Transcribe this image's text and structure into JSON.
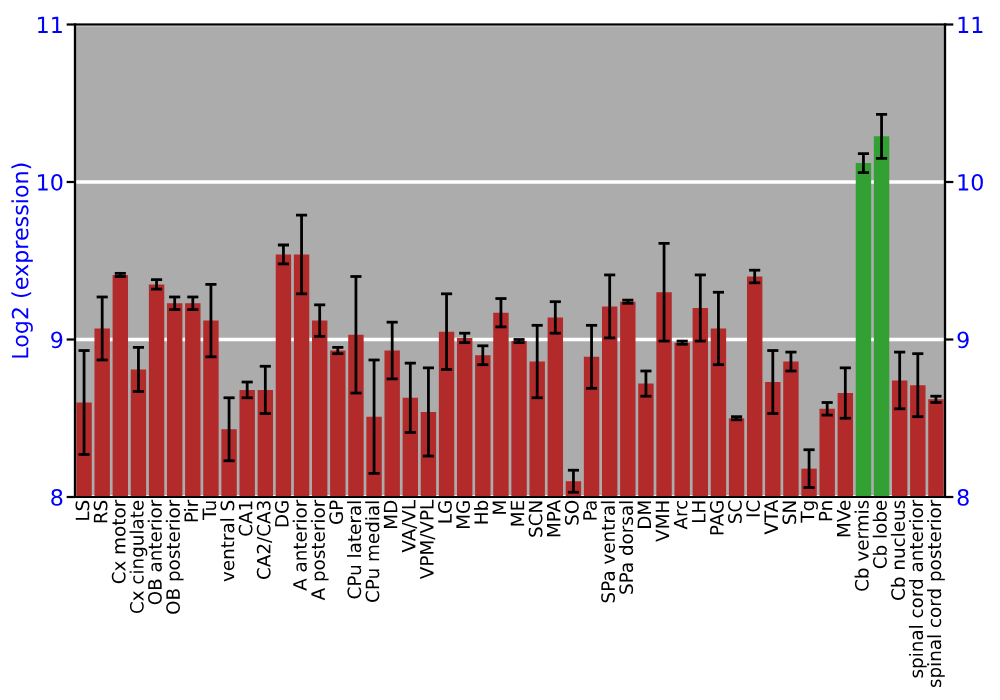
{
  "chart_data": {
    "type": "bar",
    "ylabel": "Log2 (expression)",
    "categories": [
      "LS",
      "RS",
      "Cx motor",
      "Cx cingulate",
      "OB anterior",
      "OB posterior",
      "Pir",
      "Tu",
      "ventral S",
      "CA1",
      "CA2/CA3",
      "DG",
      "A anterior",
      "A posterior",
      "GP",
      "CPu lateral",
      "CPu medial",
      "MD",
      "VA/VL",
      "VPM/VPL",
      "LG",
      "MG",
      "Hb",
      "M",
      "ME",
      "SCN",
      "MPA",
      "SO",
      "Pa",
      "SPa ventral",
      "SPa dorsal",
      "DM",
      "VMH",
      "Arc",
      "LH",
      "PAG",
      "SC",
      "IC",
      "VTA",
      "SN",
      "Tg",
      "Pn",
      "MVe",
      "Cb vermis",
      "Cb lobe",
      "Cb nucleus",
      "spinal cord anterior",
      "spinal cord posterior"
    ],
    "values": [
      8.6,
      9.07,
      9.41,
      8.81,
      9.35,
      9.23,
      9.23,
      9.12,
      8.43,
      8.68,
      8.68,
      9.54,
      9.54,
      9.12,
      8.93,
      9.03,
      8.51,
      8.93,
      8.63,
      8.54,
      9.05,
      9.01,
      8.9,
      9.17,
      8.99,
      8.86,
      9.14,
      8.1,
      8.89,
      9.21,
      9.24,
      8.72,
      9.3,
      8.98,
      9.2,
      9.07,
      8.5,
      9.4,
      8.73,
      8.86,
      8.18,
      8.56,
      8.66,
      10.12,
      10.29,
      8.74,
      8.71,
      8.62
    ],
    "errors": [
      0.33,
      0.2,
      0.01,
      0.14,
      0.03,
      0.04,
      0.04,
      0.23,
      0.2,
      0.05,
      0.15,
      0.06,
      0.25,
      0.1,
      0.02,
      0.37,
      0.36,
      0.18,
      0.22,
      0.28,
      0.24,
      0.03,
      0.06,
      0.09,
      0.01,
      0.23,
      0.1,
      0.07,
      0.2,
      0.2,
      0.01,
      0.08,
      0.31,
      0.01,
      0.21,
      0.23,
      0.01,
      0.04,
      0.2,
      0.06,
      0.12,
      0.04,
      0.16,
      0.06,
      0.14,
      0.18,
      0.2,
      0.02
    ],
    "colors": [
      "#b22a2a",
      "#b22a2a",
      "#b22a2a",
      "#b22a2a",
      "#b22a2a",
      "#b22a2a",
      "#b22a2a",
      "#b22a2a",
      "#b22a2a",
      "#b22a2a",
      "#b22a2a",
      "#b22a2a",
      "#b22a2a",
      "#b22a2a",
      "#b22a2a",
      "#b22a2a",
      "#b22a2a",
      "#b22a2a",
      "#b22a2a",
      "#b22a2a",
      "#b22a2a",
      "#b22a2a",
      "#b22a2a",
      "#b22a2a",
      "#b22a2a",
      "#b22a2a",
      "#b22a2a",
      "#b22a2a",
      "#b22a2a",
      "#b22a2a",
      "#b22a2a",
      "#b22a2a",
      "#b22a2a",
      "#b22a2a",
      "#b22a2a",
      "#b22a2a",
      "#b22a2a",
      "#b22a2a",
      "#b22a2a",
      "#b22a2a",
      "#b22a2a",
      "#b22a2a",
      "#b22a2a",
      "#33a033",
      "#33a033",
      "#b22a2a",
      "#b22a2a",
      "#b22a2a"
    ],
    "ylim": [
      8,
      11
    ],
    "yticks": [
      8,
      9,
      10,
      11
    ],
    "y2lim": [
      8,
      11
    ],
    "y2ticks": [
      8,
      9,
      10,
      11
    ],
    "grid": "y"
  }
}
